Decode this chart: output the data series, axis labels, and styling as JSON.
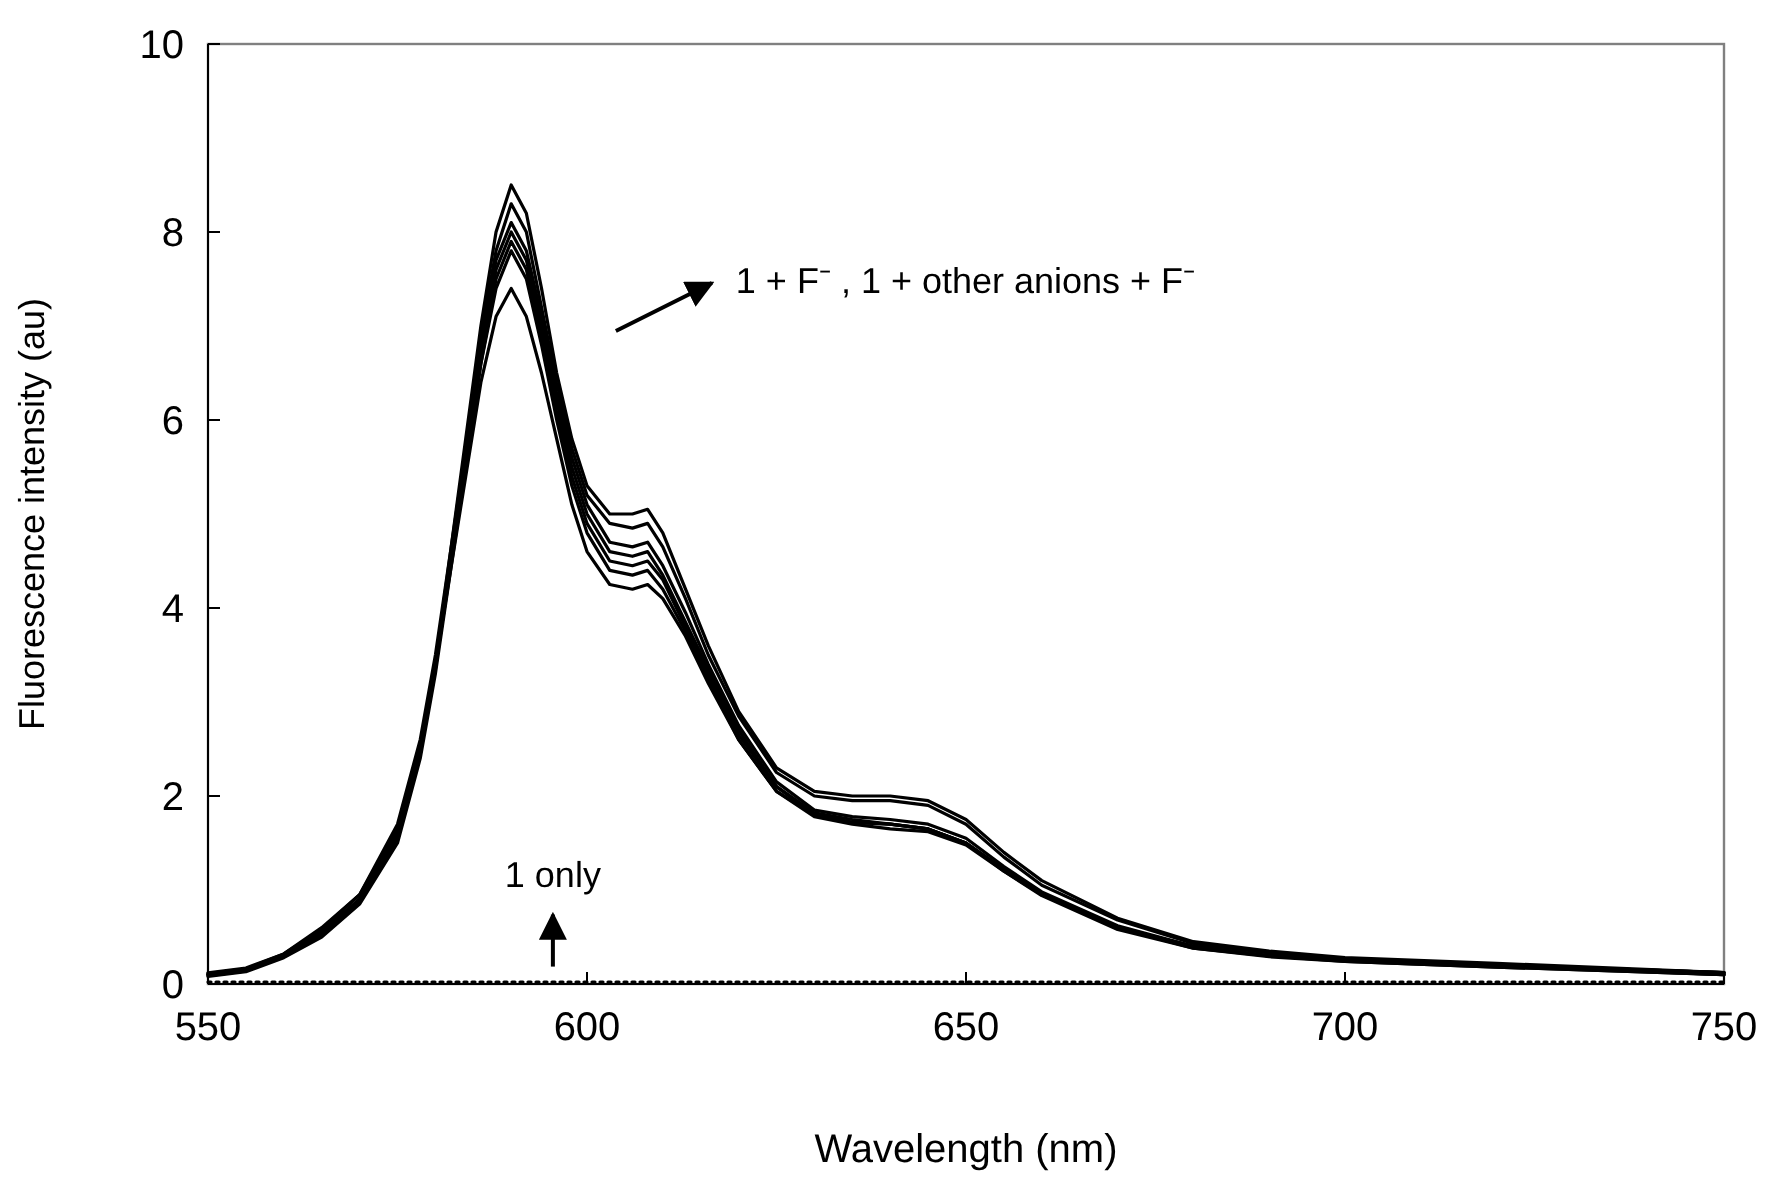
{
  "chart_data": {
    "type": "line",
    "xlabel": "Wavelength (nm)",
    "ylabel": "Fluorescence intensity (au)",
    "x": [
      550,
      555,
      560,
      565,
      570,
      575,
      578,
      580,
      582,
      584,
      586,
      588,
      590,
      592,
      594,
      596,
      598,
      600,
      603,
      606,
      608,
      610,
      613,
      616,
      620,
      625,
      630,
      635,
      640,
      645,
      650,
      655,
      660,
      670,
      680,
      690,
      700,
      720,
      750
    ],
    "series": [
      {
        "color": "#000000",
        "values": [
          0.1,
          0.15,
          0.3,
          0.55,
          0.9,
          1.6,
          2.5,
          3.4,
          4.6,
          5.8,
          7.0,
          8.0,
          8.5,
          8.2,
          7.4,
          6.5,
          5.8,
          5.3,
          5.0,
          5.0,
          5.05,
          4.8,
          4.2,
          3.6,
          2.9,
          2.3,
          2.05,
          2.0,
          2.0,
          1.95,
          1.75,
          1.4,
          1.1,
          0.7,
          0.45,
          0.35,
          0.28,
          0.22,
          0.12
        ]
      },
      {
        "color": "#000000",
        "values": [
          0.12,
          0.17,
          0.32,
          0.6,
          0.95,
          1.7,
          2.6,
          3.5,
          4.6,
          5.7,
          6.9,
          7.8,
          8.3,
          8.0,
          7.2,
          6.4,
          5.7,
          5.2,
          4.9,
          4.85,
          4.9,
          4.65,
          4.1,
          3.5,
          2.85,
          2.25,
          2.0,
          1.95,
          1.95,
          1.9,
          1.7,
          1.35,
          1.05,
          0.68,
          0.43,
          0.33,
          0.27,
          0.2,
          0.1
        ]
      },
      {
        "color": "#000000",
        "values": [
          0.1,
          0.15,
          0.3,
          0.55,
          0.9,
          1.6,
          2.5,
          3.4,
          4.5,
          5.6,
          6.8,
          7.7,
          8.1,
          7.8,
          7.1,
          6.3,
          5.6,
          5.1,
          4.7,
          4.65,
          4.7,
          4.45,
          3.95,
          3.4,
          2.75,
          2.15,
          1.85,
          1.78,
          1.75,
          1.7,
          1.55,
          1.25,
          0.98,
          0.62,
          0.4,
          0.3,
          0.25,
          0.2,
          0.12
        ]
      },
      {
        "color": "#000000",
        "values": [
          0.08,
          0.13,
          0.28,
          0.5,
          0.85,
          1.5,
          2.4,
          3.3,
          4.4,
          5.5,
          6.7,
          7.6,
          8.0,
          7.7,
          7.0,
          6.2,
          5.5,
          5.0,
          4.6,
          4.55,
          4.6,
          4.35,
          3.85,
          3.35,
          2.7,
          2.1,
          1.82,
          1.75,
          1.7,
          1.65,
          1.5,
          1.2,
          0.95,
          0.6,
          0.38,
          0.3,
          0.24,
          0.18,
          0.1
        ]
      },
      {
        "color": "#000000",
        "values": [
          0.1,
          0.14,
          0.29,
          0.52,
          0.88,
          1.55,
          2.45,
          3.35,
          4.45,
          5.5,
          6.6,
          7.5,
          7.9,
          7.6,
          6.9,
          6.1,
          5.4,
          4.9,
          4.5,
          4.45,
          4.5,
          4.3,
          3.8,
          3.3,
          2.65,
          2.1,
          1.8,
          1.72,
          1.7,
          1.65,
          1.5,
          1.22,
          0.96,
          0.6,
          0.4,
          0.3,
          0.25,
          0.2,
          0.12
        ]
      },
      {
        "color": "#000000",
        "values": [
          0.09,
          0.14,
          0.3,
          0.55,
          0.9,
          1.6,
          2.5,
          3.4,
          4.5,
          5.5,
          6.6,
          7.4,
          7.8,
          7.5,
          6.8,
          6.0,
          5.3,
          4.8,
          4.4,
          4.35,
          4.4,
          4.2,
          3.75,
          3.25,
          2.6,
          2.05,
          1.78,
          1.7,
          1.65,
          1.62,
          1.48,
          1.2,
          0.94,
          0.58,
          0.38,
          0.29,
          0.24,
          0.18,
          0.1
        ]
      },
      {
        "color": "#000000",
        "values": [
          0.11,
          0.16,
          0.32,
          0.58,
          0.95,
          1.65,
          2.55,
          3.4,
          4.4,
          5.4,
          6.4,
          7.1,
          7.4,
          7.1,
          6.5,
          5.8,
          5.1,
          4.6,
          4.25,
          4.2,
          4.25,
          4.1,
          3.7,
          3.2,
          2.6,
          2.05,
          1.8,
          1.72,
          1.7,
          1.65,
          1.5,
          1.22,
          0.95,
          0.6,
          0.4,
          0.3,
          0.25,
          0.2,
          0.12
        ]
      },
      {
        "color": "#000000",
        "line_style": "dotted",
        "values": [
          0.02,
          0.02,
          0.02,
          0.02,
          0.02,
          0.02,
          0.02,
          0.02,
          0.02,
          0.02,
          0.02,
          0.02,
          0.02,
          0.02,
          0.02,
          0.02,
          0.02,
          0.02,
          0.02,
          0.02,
          0.02,
          0.02,
          0.02,
          0.02,
          0.02,
          0.02,
          0.02,
          0.02,
          0.02,
          0.02,
          0.02,
          0.02,
          0.02,
          0.02,
          0.02,
          0.02,
          0.02,
          0.02,
          0.02
        ]
      }
    ],
    "xlim": [
      550,
      750
    ],
    "xticks": [
      550,
      600,
      650,
      700,
      750
    ],
    "ylim": [
      0,
      10
    ],
    "yticks": [
      0,
      2,
      4,
      6,
      8,
      10
    ],
    "grid": false,
    "marker": "none",
    "line_style": "solid",
    "annotations": [
      "1 + F⁻ , 1 + other anions + F⁻",
      {
        "text": "1 only",
        "x": 595.5,
        "y": 0.1
      }
    ]
  }
}
